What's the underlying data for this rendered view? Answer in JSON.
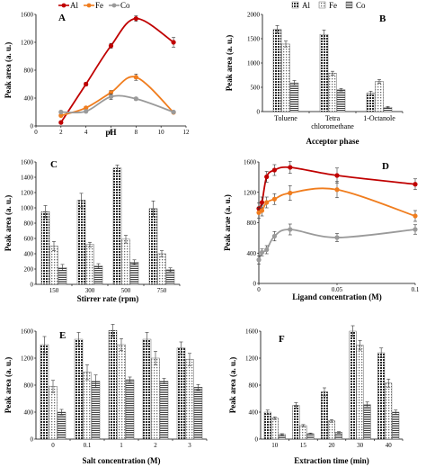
{
  "figure": {
    "colors": {
      "al": "#c00000",
      "fe": "#f07d1e",
      "co": "#9a9a9a",
      "bar_al": "#3a3a3a",
      "bar_fe": "#8a8a8a",
      "bar_co": "#555555"
    }
  },
  "chart_data": [
    {
      "panel": "A",
      "type": "line",
      "xlabel": "pH",
      "ylabel": "Peak area (a. u.)",
      "xlim": [
        0,
        12
      ],
      "ylim": [
        0,
        1600
      ],
      "xticks": [
        "0",
        "2",
        "4",
        "6",
        "8",
        "10",
        "12"
      ],
      "yticks": [
        "0",
        "400",
        "800",
        "1200",
        "1600"
      ],
      "x": [
        2,
        4,
        6,
        8,
        11
      ],
      "series": [
        {
          "name": "Al",
          "values": [
            50,
            600,
            1150,
            1540,
            1200
          ],
          "errors": [
            20,
            25,
            35,
            40,
            70
          ]
        },
        {
          "name": "Fe",
          "values": [
            150,
            260,
            480,
            700,
            195
          ],
          "errors": [
            15,
            20,
            30,
            45,
            15
          ]
        },
        {
          "name": "Co",
          "values": [
            200,
            210,
            420,
            390,
            200
          ],
          "errors": [
            15,
            15,
            40,
            20,
            15
          ]
        }
      ],
      "legend": "top"
    },
    {
      "panel": "B",
      "type": "bar",
      "xlabel": "Acceptor phase",
      "ylabel": "Peak area (a. u.)",
      "ylim": [
        0,
        2000
      ],
      "yticks": [
        "0",
        "500",
        "1000",
        "1500",
        "2000"
      ],
      "categories": [
        "Toluene",
        "Tetra chloromethane",
        "1-Octanole"
      ],
      "series": [
        {
          "name": "Al",
          "values": [
            1690,
            1590,
            380
          ],
          "errors": [
            80,
            90,
            40
          ]
        },
        {
          "name": "Fe",
          "values": [
            1390,
            790,
            620
          ],
          "errors": [
            60,
            40,
            40
          ]
        },
        {
          "name": "Co",
          "values": [
            590,
            450,
            90
          ],
          "errors": [
            50,
            25,
            15
          ]
        }
      ],
      "legend": "top"
    },
    {
      "panel": "C",
      "type": "bar",
      "xlabel": "Stirrer rate (rpm)",
      "ylabel": "Peak area (a. u.)",
      "ylim": [
        0,
        1600
      ],
      "yticks": [
        "0",
        "200",
        "400",
        "600",
        "800",
        "1000",
        "1200",
        "1400",
        "1600"
      ],
      "categories": [
        "150",
        "300",
        "500",
        "750"
      ],
      "series": [
        {
          "values": [
            950,
            1100,
            1520,
            990
          ],
          "errors": [
            80,
            90,
            40,
            100
          ]
        },
        {
          "values": [
            500,
            520,
            590,
            400
          ],
          "errors": [
            60,
            30,
            50,
            40
          ]
        },
        {
          "values": [
            220,
            240,
            290,
            190
          ],
          "errors": [
            40,
            30,
            30,
            25
          ]
        }
      ]
    },
    {
      "panel": "D",
      "type": "line",
      "xlabel": "Ligand concentration (M)",
      "ylabel": "Peak arae (a. u.)",
      "xlim": [
        0,
        0.1
      ],
      "ylim": [
        0,
        1800
      ],
      "xticks": [
        "0",
        "0.05",
        "0.1"
      ],
      "yticks": [
        "0",
        "400",
        "800",
        "1200",
        "1600"
      ],
      "x": [
        0,
        0.002,
        0.005,
        0.01,
        0.02,
        0.05,
        0.1
      ],
      "series": [
        {
          "values": [
            1110,
            1200,
            1580,
            1680,
            1720,
            1600,
            1470
          ],
          "errors": [
            80,
            80,
            80,
            80,
            90,
            110,
            80
          ]
        },
        {
          "values": [
            1050,
            1080,
            1200,
            1250,
            1340,
            1390,
            1000
          ],
          "errors": [
            80,
            80,
            80,
            80,
            110,
            120,
            80
          ]
        },
        {
          "values": [
            350,
            460,
            500,
            700,
            800,
            680,
            800
          ],
          "errors": [
            60,
            50,
            60,
            70,
            80,
            60,
            70
          ]
        }
      ]
    },
    {
      "panel": "E",
      "type": "bar",
      "xlabel": "Salt concentration (M)",
      "ylabel": "Peak area (a. u.)",
      "ylim": [
        0,
        1600
      ],
      "yticks": [
        "0",
        "400",
        "800",
        "1200",
        "1600"
      ],
      "categories": [
        "0",
        "0.1",
        "1",
        "2",
        "3"
      ],
      "series": [
        {
          "values": [
            1400,
            1480,
            1610,
            1480,
            1350
          ],
          "errors": [
            120,
            100,
            90,
            100,
            90
          ]
        },
        {
          "values": [
            780,
            990,
            1400,
            1200,
            1180
          ],
          "errors": [
            90,
            110,
            90,
            100,
            90
          ]
        },
        {
          "values": [
            400,
            860,
            880,
            860,
            770
          ],
          "errors": [
            40,
            90,
            40,
            40,
            40
          ]
        }
      ]
    },
    {
      "panel": "F",
      "type": "bar",
      "xlabel": "Extraction time (min)",
      "ylabel": "Peak area (a. u.)",
      "ylim": [
        0,
        1600
      ],
      "yticks": [
        "0",
        "400",
        "800",
        "1200",
        "1600"
      ],
      "categories": [
        "10",
        "15",
        "20",
        "30",
        "40"
      ],
      "series": [
        {
          "values": [
            400,
            500,
            700,
            1600,
            1280
          ],
          "errors": [
            30,
            40,
            60,
            80,
            70
          ]
        },
        {
          "values": [
            310,
            200,
            270,
            1390,
            830
          ],
          "errors": [
            20,
            15,
            20,
            70,
            60
          ]
        },
        {
          "values": [
            70,
            80,
            100,
            510,
            400
          ],
          "errors": [
            10,
            10,
            10,
            40,
            30
          ]
        }
      ]
    }
  ]
}
